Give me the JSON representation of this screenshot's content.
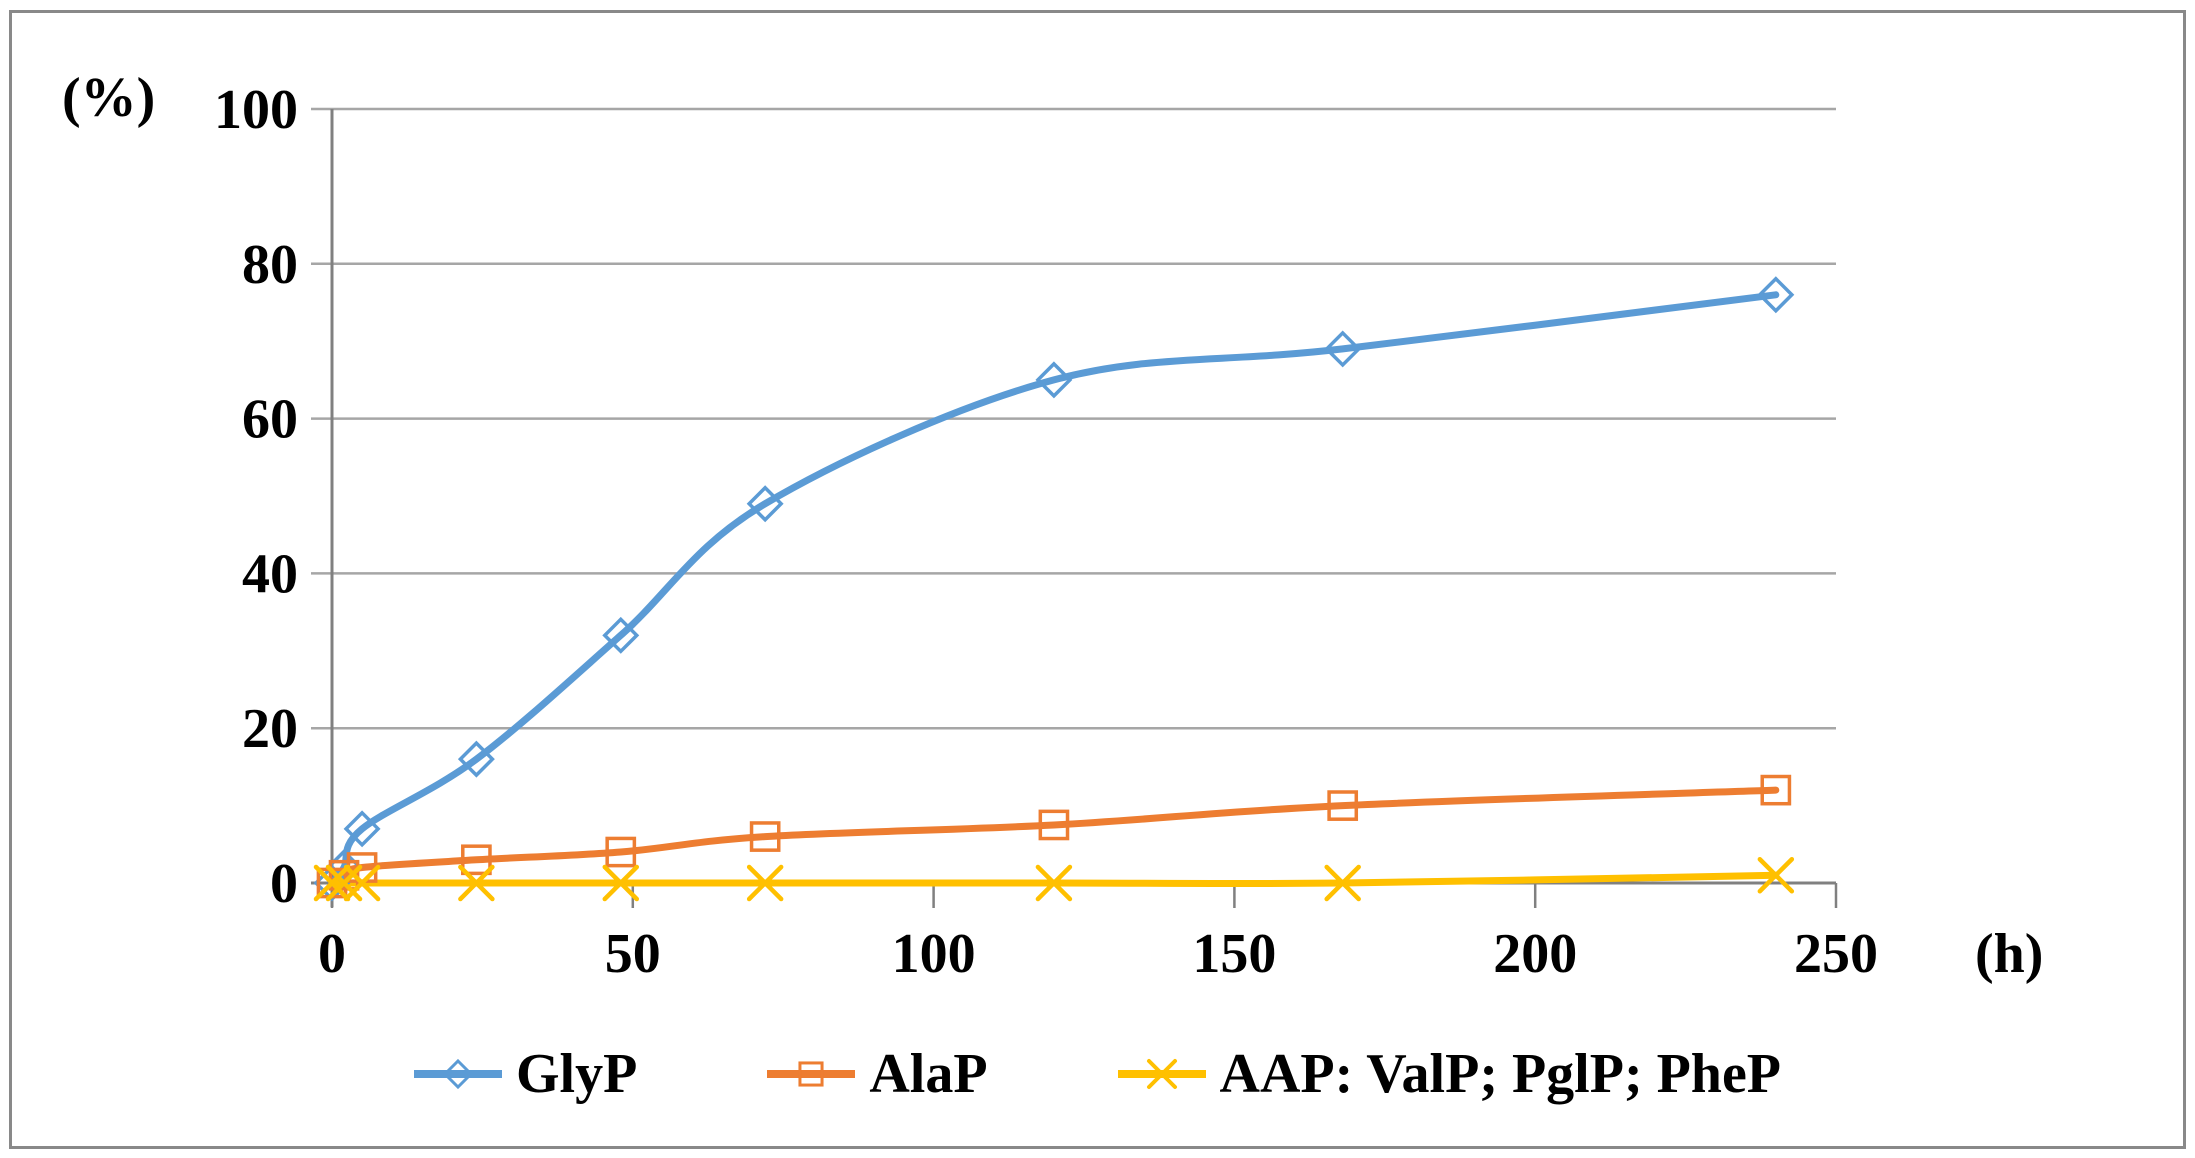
{
  "chart_data": {
    "type": "line",
    "title": "",
    "ylabel": "(%)",
    "xlabel": "(h)",
    "xlim": [
      0,
      250
    ],
    "ylim": [
      0,
      100
    ],
    "xticks": [
      0,
      50,
      100,
      150,
      200,
      250
    ],
    "yticks": [
      0,
      20,
      40,
      60,
      80,
      100
    ],
    "grid": "horizontal",
    "legend_position": "bottom-center",
    "x": [
      0,
      2,
      5,
      24,
      48,
      72,
      120,
      168,
      240
    ],
    "series": [
      {
        "name": "GlyP",
        "color": "#5B9BD5",
        "marker": "diamond",
        "values": [
          0,
          2,
          7,
          16,
          32,
          49,
          65,
          69,
          76
        ]
      },
      {
        "name": "AlaP",
        "color": "#ED7D31",
        "marker": "square",
        "values": [
          0,
          1,
          2,
          3,
          4,
          6,
          7.5,
          10,
          12
        ]
      },
      {
        "name": "AAP: ValP; PglP; PheP",
        "color": "#FFC000",
        "marker": "x-cross",
        "values": [
          0,
          0,
          0,
          0,
          0,
          0,
          0,
          0,
          1
        ]
      }
    ]
  },
  "styles": {
    "grid_color": "#A6A6A6",
    "axis_color": "#808080",
    "marker_fill": "none",
    "text_color": "#000000",
    "frame_border_color": "#898989",
    "background": "#FFFFFF"
  }
}
